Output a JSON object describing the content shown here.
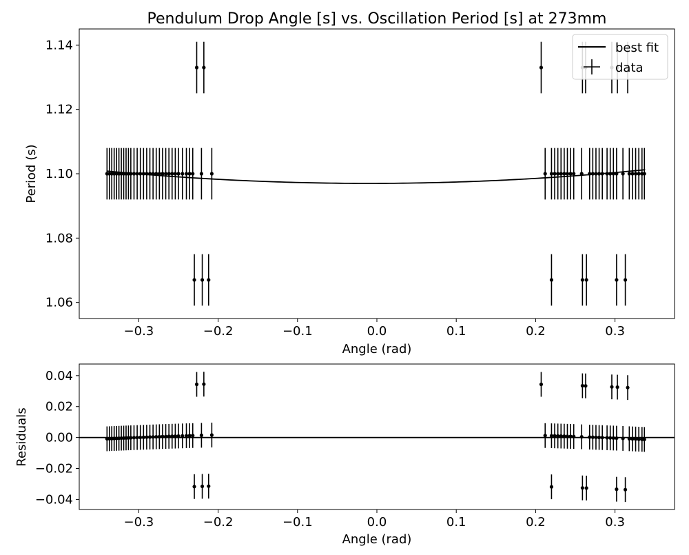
{
  "chart_data": [
    {
      "type": "scatter",
      "title": "Pendulum Drop Angle [s] vs. Oscillation Period [s] at 273mm",
      "xlabel": "Angle (rad)",
      "ylabel": "Period (s)",
      "xlim": [
        -0.375,
        0.375
      ],
      "ylim": [
        1.055,
        1.145
      ],
      "xticks": [
        -0.3,
        -0.2,
        -0.1,
        0.0,
        0.1,
        0.2,
        0.3
      ],
      "xtick_labels": [
        "−0.3",
        "−0.2",
        "−0.1",
        "0.0",
        "0.1",
        "0.2",
        "0.3"
      ],
      "yticks": [
        1.06,
        1.08,
        1.1,
        1.12,
        1.14
      ],
      "ytick_labels": [
        "1.06",
        "1.08",
        "1.10",
        "1.12",
        "1.14"
      ],
      "grid": false,
      "legend": {
        "placement": "top-right",
        "entries": [
          "best fit",
          "data"
        ]
      },
      "yerr": 0.008,
      "fit": {
        "a": 0.0351,
        "x0": -0.01,
        "c": 1.097
      },
      "series": [
        {
          "name": "data",
          "points": [
            [
              -0.34,
              1.1
            ],
            [
              -0.337,
              1.1
            ],
            [
              -0.334,
              1.1
            ],
            [
              -0.331,
              1.1
            ],
            [
              -0.328,
              1.1
            ],
            [
              -0.325,
              1.1
            ],
            [
              -0.322,
              1.1
            ],
            [
              -0.319,
              1.1
            ],
            [
              -0.316,
              1.1
            ],
            [
              -0.313,
              1.1
            ],
            [
              -0.31,
              1.1
            ],
            [
              -0.306,
              1.1
            ],
            [
              -0.302,
              1.1
            ],
            [
              -0.298,
              1.1
            ],
            [
              -0.294,
              1.1
            ],
            [
              -0.29,
              1.1
            ],
            [
              -0.286,
              1.1
            ],
            [
              -0.282,
              1.1
            ],
            [
              -0.278,
              1.1
            ],
            [
              -0.274,
              1.1
            ],
            [
              -0.27,
              1.1
            ],
            [
              -0.266,
              1.1
            ],
            [
              -0.262,
              1.1
            ],
            [
              -0.258,
              1.1
            ],
            [
              -0.254,
              1.1
            ],
            [
              -0.25,
              1.1
            ],
            [
              -0.245,
              1.1
            ],
            [
              -0.24,
              1.1
            ],
            [
              -0.236,
              1.1
            ],
            [
              -0.232,
              1.1
            ],
            [
              -0.221,
              1.1
            ],
            [
              -0.208,
              1.1
            ],
            [
              -0.227,
              1.133
            ],
            [
              -0.218,
              1.133
            ],
            [
              -0.23,
              1.067
            ],
            [
              -0.22,
              1.067
            ],
            [
              -0.212,
              1.067
            ],
            [
              0.212,
              1.1
            ],
            [
              0.22,
              1.1
            ],
            [
              0.224,
              1.1
            ],
            [
              0.228,
              1.1
            ],
            [
              0.232,
              1.1
            ],
            [
              0.236,
              1.1
            ],
            [
              0.24,
              1.1
            ],
            [
              0.244,
              1.1
            ],
            [
              0.248,
              1.1
            ],
            [
              0.258,
              1.1
            ],
            [
              0.268,
              1.1
            ],
            [
              0.272,
              1.1
            ],
            [
              0.276,
              1.1
            ],
            [
              0.28,
              1.1
            ],
            [
              0.284,
              1.1
            ],
            [
              0.29,
              1.1
            ],
            [
              0.294,
              1.1
            ],
            [
              0.298,
              1.1
            ],
            [
              0.302,
              1.1
            ],
            [
              0.31,
              1.1
            ],
            [
              0.318,
              1.1
            ],
            [
              0.322,
              1.1
            ],
            [
              0.326,
              1.1
            ],
            [
              0.33,
              1.1
            ],
            [
              0.334,
              1.1
            ],
            [
              0.337,
              1.1
            ],
            [
              0.207,
              1.133
            ],
            [
              0.259,
              1.133
            ],
            [
              0.263,
              1.133
            ],
            [
              0.296,
              1.133
            ],
            [
              0.303,
              1.133
            ],
            [
              0.316,
              1.133
            ],
            [
              0.22,
              1.067
            ],
            [
              0.259,
              1.067
            ],
            [
              0.264,
              1.067
            ],
            [
              0.302,
              1.067
            ],
            [
              0.313,
              1.067
            ]
          ]
        }
      ]
    },
    {
      "type": "scatter",
      "xlabel": "Angle (rad)",
      "ylabel": "Residuals",
      "xlim": [
        -0.375,
        0.375
      ],
      "ylim": [
        -0.0465,
        0.0475
      ],
      "xticks": [
        -0.3,
        -0.2,
        -0.1,
        0.0,
        0.1,
        0.2,
        0.3
      ],
      "xtick_labels": [
        "−0.3",
        "−0.2",
        "−0.1",
        "0.0",
        "0.1",
        "0.2",
        "0.3"
      ],
      "yticks": [
        -0.04,
        -0.02,
        0.0,
        0.02,
        0.04
      ],
      "ytick_labels": [
        "−0.04",
        "−0.02",
        "0.00",
        "0.02",
        "0.04"
      ],
      "grid": false,
      "zero_line": 0.0,
      "yerr": 0.008
    }
  ]
}
